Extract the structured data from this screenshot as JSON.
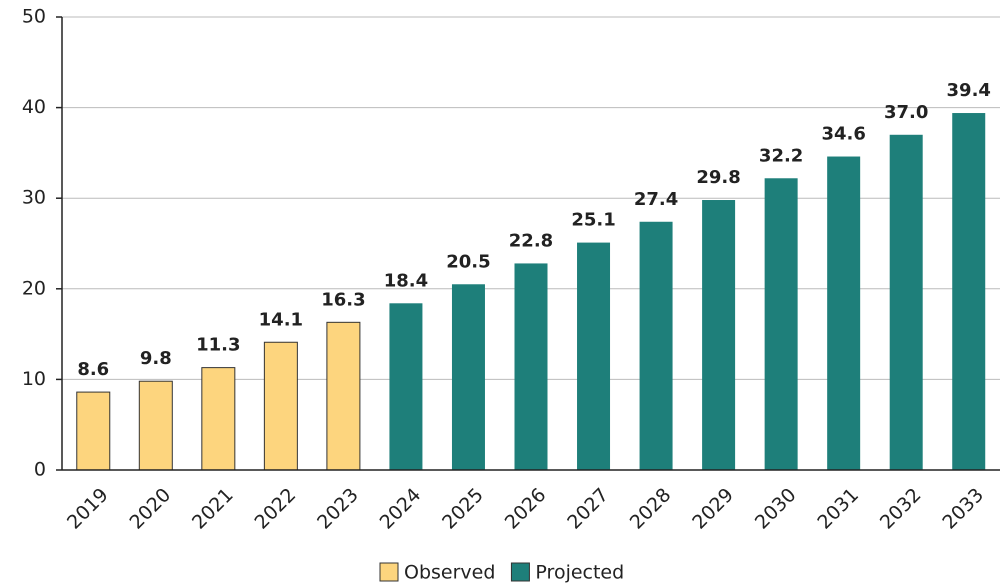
{
  "chart_data": {
    "type": "bar",
    "categories": [
      "2019",
      "2020",
      "2021",
      "2022",
      "2023",
      "2024",
      "2025",
      "2026",
      "2027",
      "2028",
      "2029",
      "2030",
      "2031",
      "2032",
      "2033"
    ],
    "series": [
      {
        "name": "Observed",
        "color": "#fdd57e",
        "values": [
          8.6,
          9.8,
          11.3,
          14.1,
          16.3,
          null,
          null,
          null,
          null,
          null,
          null,
          null,
          null,
          null,
          null
        ],
        "value_labels": [
          "8.6",
          "9.8",
          "11.3",
          "14.1",
          "16.3",
          null,
          null,
          null,
          null,
          null,
          null,
          null,
          null,
          null,
          null
        ]
      },
      {
        "name": "Projected",
        "color": "#1e7f7a",
        "values": [
          null,
          null,
          null,
          null,
          null,
          18.4,
          20.5,
          22.8,
          25.1,
          27.4,
          29.8,
          32.2,
          34.6,
          37.0,
          39.4
        ],
        "value_labels": [
          null,
          null,
          null,
          null,
          null,
          "18.4",
          "20.5",
          "22.8",
          "25.1",
          "27.4",
          "29.8",
          "32.2",
          "34.6",
          "37.0",
          "39.4"
        ]
      }
    ],
    "ylim": [
      0,
      50
    ],
    "yticks": [
      0,
      10,
      20,
      30,
      40,
      50
    ],
    "grid": true,
    "legend": "bottom"
  }
}
